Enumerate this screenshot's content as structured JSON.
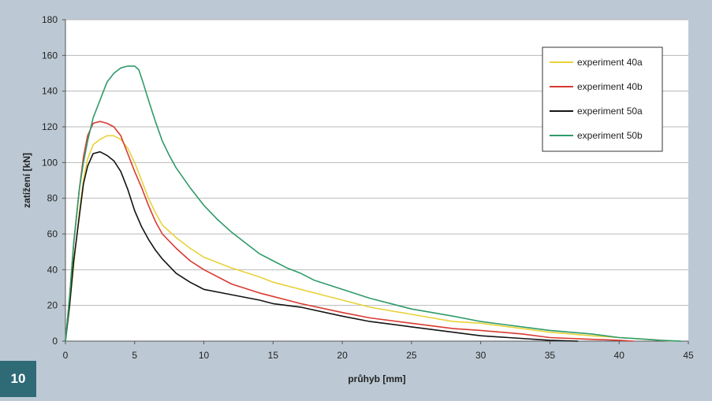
{
  "figure_number": "10",
  "chart_data": {
    "type": "line",
    "title": "",
    "xlabel": "průhyb [mm]",
    "ylabel": "zatížení [kN]",
    "xlim": [
      0,
      45
    ],
    "ylim": [
      0,
      180
    ],
    "x_ticks": [
      0,
      5,
      10,
      15,
      20,
      25,
      30,
      35,
      40,
      45
    ],
    "y_ticks": [
      0,
      20,
      40,
      60,
      80,
      100,
      120,
      140,
      160,
      180
    ],
    "grid": "horizontal",
    "legend_position": "top-right",
    "plot_background": "#ffffff",
    "grid_color": "#b8b8b8",
    "series": [
      {
        "name": "experiment 40a",
        "color": "#e8d23a",
        "points": [
          [
            0,
            0
          ],
          [
            0.3,
            20
          ],
          [
            0.7,
            50
          ],
          [
            1.0,
            72
          ],
          [
            1.3,
            90
          ],
          [
            1.6,
            102
          ],
          [
            2.0,
            110
          ],
          [
            2.5,
            113
          ],
          [
            3.0,
            115
          ],
          [
            3.5,
            115
          ],
          [
            4.0,
            113
          ],
          [
            4.5,
            108
          ],
          [
            5.0,
            100
          ],
          [
            5.5,
            90
          ],
          [
            6.0,
            80
          ],
          [
            6.5,
            72
          ],
          [
            7.0,
            65
          ],
          [
            8.0,
            58
          ],
          [
            9.0,
            52
          ],
          [
            10,
            47
          ],
          [
            12,
            41
          ],
          [
            14,
            36
          ],
          [
            15,
            33
          ],
          [
            17,
            29
          ],
          [
            20,
            23
          ],
          [
            22,
            19
          ],
          [
            25,
            15
          ],
          [
            28,
            11
          ],
          [
            30,
            10
          ],
          [
            33,
            7
          ],
          [
            35,
            5
          ],
          [
            38,
            3
          ],
          [
            40,
            2
          ],
          [
            42,
            1
          ],
          [
            43,
            0.5
          ],
          [
            44,
            0
          ]
        ]
      },
      {
        "name": "experiment 40b",
        "color": "#d93a32",
        "points": [
          [
            0,
            0
          ],
          [
            0.3,
            25
          ],
          [
            0.6,
            55
          ],
          [
            1.0,
            85
          ],
          [
            1.3,
            103
          ],
          [
            1.6,
            115
          ],
          [
            2.0,
            122
          ],
          [
            2.5,
            123
          ],
          [
            3.0,
            122
          ],
          [
            3.5,
            120
          ],
          [
            4.0,
            115
          ],
          [
            4.5,
            105
          ],
          [
            5.0,
            95
          ],
          [
            5.5,
            86
          ],
          [
            6.0,
            76
          ],
          [
            6.5,
            67
          ],
          [
            7.0,
            60
          ],
          [
            8.0,
            52
          ],
          [
            9.0,
            45
          ],
          [
            10,
            40
          ],
          [
            12,
            32
          ],
          [
            14,
            27
          ],
          [
            15,
            25
          ],
          [
            17,
            21
          ],
          [
            20,
            16
          ],
          [
            22,
            13
          ],
          [
            25,
            10
          ],
          [
            28,
            7
          ],
          [
            30,
            6
          ],
          [
            33,
            4
          ],
          [
            35,
            2
          ],
          [
            38,
            1
          ],
          [
            40,
            0.5
          ],
          [
            41,
            0
          ]
        ]
      },
      {
        "name": "experiment 50a",
        "color": "#141414",
        "points": [
          [
            0,
            0
          ],
          [
            0.3,
            20
          ],
          [
            0.6,
            45
          ],
          [
            1.0,
            70
          ],
          [
            1.3,
            88
          ],
          [
            1.6,
            98
          ],
          [
            2.0,
            105
          ],
          [
            2.5,
            106
          ],
          [
            3.0,
            104
          ],
          [
            3.5,
            101
          ],
          [
            4.0,
            95
          ],
          [
            4.5,
            85
          ],
          [
            5.0,
            73
          ],
          [
            5.5,
            64
          ],
          [
            6.0,
            57
          ],
          [
            6.5,
            51
          ],
          [
            7.0,
            46
          ],
          [
            8.0,
            38
          ],
          [
            9.0,
            33
          ],
          [
            10,
            29
          ],
          [
            12,
            26
          ],
          [
            14,
            23
          ],
          [
            15,
            21
          ],
          [
            17,
            19
          ],
          [
            20,
            14
          ],
          [
            22,
            11
          ],
          [
            25,
            8
          ],
          [
            28,
            5
          ],
          [
            30,
            3
          ],
          [
            32,
            2
          ],
          [
            35,
            0.5
          ],
          [
            37,
            0
          ]
        ]
      },
      {
        "name": "experiment 50b",
        "color": "#2f9a6a",
        "points": [
          [
            0,
            0
          ],
          [
            0.3,
            25
          ],
          [
            0.6,
            55
          ],
          [
            1.0,
            85
          ],
          [
            1.3,
            100
          ],
          [
            1.6,
            112
          ],
          [
            2.0,
            125
          ],
          [
            2.5,
            135
          ],
          [
            3.0,
            145
          ],
          [
            3.5,
            150
          ],
          [
            4.0,
            153
          ],
          [
            4.5,
            154
          ],
          [
            5.0,
            154
          ],
          [
            5.3,
            152
          ],
          [
            5.6,
            145
          ],
          [
            6.0,
            135
          ],
          [
            6.5,
            123
          ],
          [
            7.0,
            112
          ],
          [
            7.5,
            104
          ],
          [
            8.0,
            97
          ],
          [
            9.0,
            86
          ],
          [
            10,
            76
          ],
          [
            11,
            68
          ],
          [
            12,
            61
          ],
          [
            13,
            55
          ],
          [
            14,
            49
          ],
          [
            15,
            45
          ],
          [
            16,
            41
          ],
          [
            17,
            38
          ],
          [
            18,
            34
          ],
          [
            20,
            29
          ],
          [
            22,
            24
          ],
          [
            25,
            18
          ],
          [
            28,
            14
          ],
          [
            30,
            11
          ],
          [
            33,
            8
          ],
          [
            35,
            6
          ],
          [
            38,
            4
          ],
          [
            40,
            2
          ],
          [
            42,
            1
          ],
          [
            43,
            0.5
          ],
          [
            44.5,
            0
          ]
        ]
      }
    ]
  }
}
